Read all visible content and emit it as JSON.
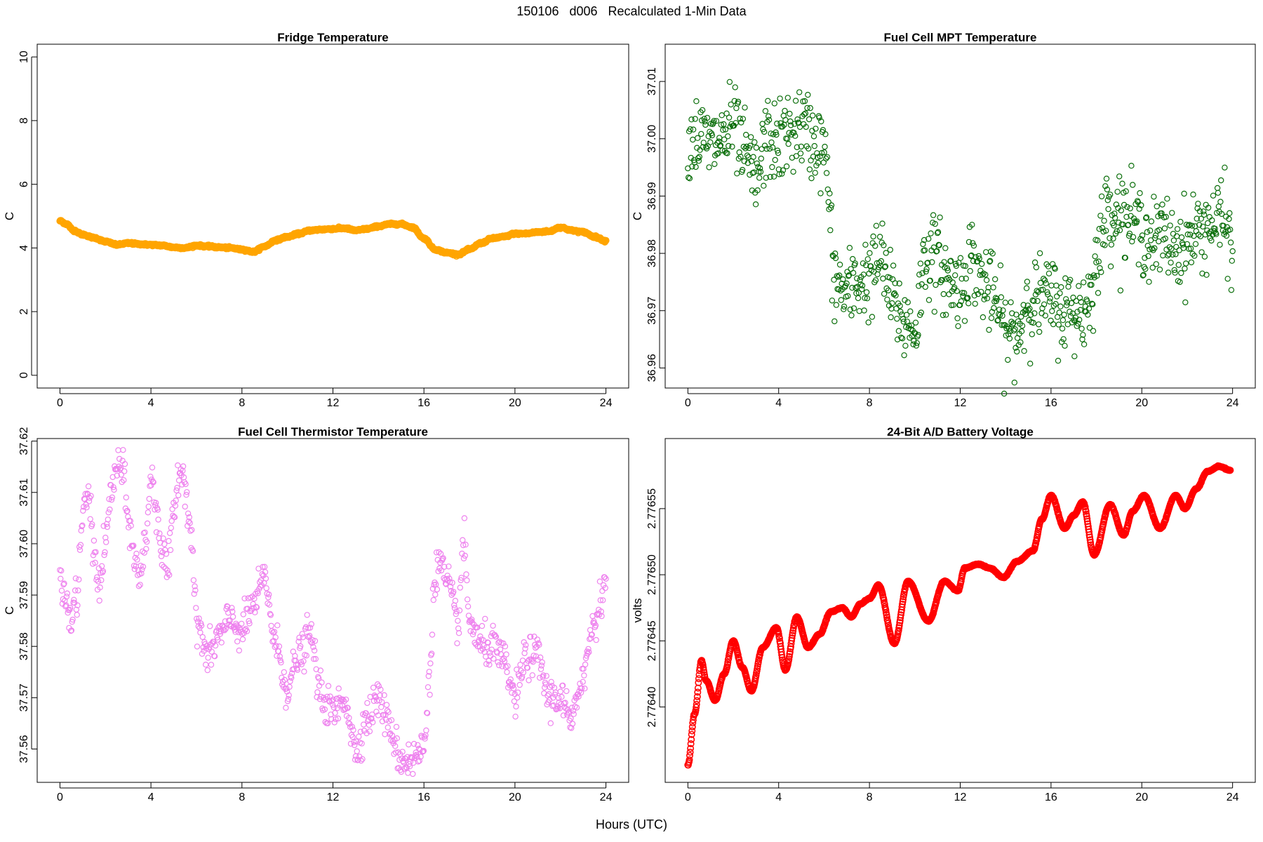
{
  "figure": {
    "title": "150106   d006   Recalculated 1-Min Data",
    "xlabel": "Hours (UTC)"
  },
  "chart_data": [
    {
      "type": "scatter",
      "id": "fridge",
      "title": "Fridge Temperature",
      "ylabel": "C",
      "color": "#FFA500",
      "xlim": [
        -1,
        25
      ],
      "ylim": [
        -0.4,
        10.4
      ],
      "xticks": [
        0,
        4,
        8,
        12,
        16,
        20,
        24
      ],
      "yticks": [
        0,
        2,
        4,
        6,
        8,
        10
      ],
      "ytick_labels": [
        "0",
        "2",
        "4",
        "6",
        "8",
        "10"
      ],
      "render": "dense",
      "noise": 0.015,
      "x": [
        0,
        0.3,
        0.6,
        1.0,
        1.5,
        2.0,
        2.5,
        3.0,
        3.5,
        4.0,
        4.5,
        5.0,
        5.5,
        6.0,
        6.5,
        7.0,
        7.5,
        8.0,
        8.5,
        9.0,
        9.5,
        10.0,
        10.5,
        11.0,
        11.5,
        12.0,
        12.5,
        13.0,
        13.5,
        14.0,
        14.5,
        15.0,
        15.5,
        16.0,
        16.5,
        17.0,
        17.5,
        18.0,
        18.5,
        19.0,
        19.5,
        20.0,
        20.5,
        21.0,
        21.5,
        22.0,
        22.5,
        23.0,
        23.5,
        24.0
      ],
      "values": [
        4.85,
        4.75,
        4.55,
        4.42,
        4.32,
        4.2,
        4.1,
        4.15,
        4.12,
        4.1,
        4.08,
        4.02,
        4.0,
        4.08,
        4.05,
        4.02,
        4.0,
        3.95,
        3.88,
        4.05,
        4.25,
        4.35,
        4.45,
        4.55,
        4.58,
        4.6,
        4.62,
        4.55,
        4.6,
        4.68,
        4.75,
        4.75,
        4.65,
        4.3,
        3.95,
        3.85,
        3.8,
        3.95,
        4.15,
        4.3,
        4.35,
        4.45,
        4.45,
        4.5,
        4.52,
        4.65,
        4.55,
        4.5,
        4.35,
        4.22
      ]
    },
    {
      "type": "scatter",
      "id": "mpt",
      "title": "Fuel Cell MPT Temperature",
      "ylabel": "C",
      "color": "#0A6E0A",
      "xlim": [
        -1,
        25
      ],
      "ylim": [
        36.9565,
        37.0165
      ],
      "xticks": [
        0,
        4,
        8,
        12,
        16,
        20,
        24
      ],
      "yticks": [
        36.96,
        36.97,
        36.98,
        36.99,
        37.0,
        37.01
      ],
      "ytick_labels": [
        "36.96",
        "36.97",
        "36.98",
        "36.99",
        "37.00",
        "37.01"
      ],
      "render": "scatter",
      "noise": 0.0065,
      "x": [
        0,
        0.5,
        1.0,
        1.5,
        2.0,
        2.5,
        3.0,
        3.5,
        4.0,
        4.5,
        5.0,
        5.5,
        6.0,
        6.5,
        7.0,
        7.5,
        8.0,
        8.5,
        9.0,
        9.5,
        10.0,
        10.5,
        11.0,
        11.5,
        12.0,
        12.5,
        13.0,
        13.5,
        14.0,
        14.5,
        15.0,
        15.5,
        16.0,
        16.5,
        17.0,
        17.5,
        18.0,
        18.5,
        19.0,
        19.5,
        20.0,
        20.5,
        21.0,
        21.5,
        22.0,
        22.5,
        23.0,
        23.5,
        24.0
      ],
      "values": [
        37.0,
        37.0,
        36.999,
        37.0,
        37.002,
        36.997,
        36.993,
        37.0,
        36.999,
        37.001,
        37.002,
        37.0,
        36.998,
        36.975,
        36.973,
        36.975,
        36.976,
        36.979,
        36.972,
        36.968,
        36.967,
        36.98,
        36.979,
        36.975,
        36.974,
        36.979,
        36.975,
        36.972,
        36.966,
        36.966,
        36.972,
        36.972,
        36.972,
        36.97,
        36.97,
        36.97,
        36.978,
        36.988,
        36.987,
        36.986,
        36.984,
        36.982,
        36.983,
        36.981,
        36.982,
        36.984,
        36.985,
        36.986,
        36.982
      ]
    },
    {
      "type": "scatter",
      "id": "thermistor",
      "title": "Fuel Cell Thermistor Temperature",
      "ylabel": "C",
      "color": "#EE82EE",
      "xlim": [
        -1,
        25
      ],
      "ylim": [
        37.5535,
        37.6205
      ],
      "xticks": [
        0,
        4,
        8,
        12,
        16,
        20,
        24
      ],
      "yticks": [
        37.56,
        37.57,
        37.58,
        37.59,
        37.6,
        37.61,
        37.62
      ],
      "ytick_labels": [
        "37.56",
        "37.57",
        "37.58",
        "37.59",
        "37.60",
        "37.61",
        "37.62"
      ],
      "render": "scatter",
      "noise": 0.0035,
      "x": [
        0,
        0.25,
        0.5,
        0.75,
        1.0,
        1.25,
        1.5,
        1.75,
        2.0,
        2.25,
        2.5,
        2.75,
        3.0,
        3.25,
        3.5,
        3.75,
        4.0,
        4.25,
        4.5,
        4.75,
        5.0,
        5.25,
        5.5,
        5.75,
        6.0,
        6.5,
        7.0,
        7.5,
        8.0,
        8.5,
        9.0,
        9.5,
        10.0,
        10.5,
        11.0,
        11.5,
        12.0,
        12.5,
        13.0,
        13.5,
        14.0,
        14.5,
        15.0,
        15.5,
        16.0,
        16.25,
        16.5,
        16.75,
        17.0,
        17.5,
        17.75,
        18.0,
        18.5,
        19.0,
        19.5,
        20.0,
        20.5,
        21.0,
        21.5,
        22.0,
        22.5,
        23.0,
        23.5,
        24.0
      ],
      "values": [
        37.592,
        37.589,
        37.585,
        37.59,
        37.605,
        37.61,
        37.598,
        37.592,
        37.6,
        37.61,
        37.615,
        37.614,
        37.605,
        37.598,
        37.593,
        37.6,
        37.613,
        37.607,
        37.598,
        37.595,
        37.605,
        37.615,
        37.612,
        37.603,
        37.585,
        37.578,
        37.582,
        37.585,
        37.583,
        37.588,
        37.593,
        37.58,
        37.572,
        37.578,
        37.582,
        37.57,
        37.567,
        37.57,
        37.56,
        37.566,
        37.57,
        37.564,
        37.558,
        37.558,
        37.56,
        37.575,
        37.595,
        37.596,
        37.592,
        37.585,
        37.6,
        37.585,
        37.58,
        37.58,
        37.577,
        37.57,
        37.578,
        37.578,
        37.57,
        37.57,
        37.565,
        37.575,
        37.585,
        37.593
      ]
    },
    {
      "type": "scatter",
      "id": "battery",
      "title": "24-Bit A/D Battery Voltage",
      "ylabel": "volts",
      "color": "#FF0000",
      "xlim": [
        -1,
        25
      ],
      "ylim": [
        2.776343,
        2.776603
      ],
      "xticks": [
        0,
        4,
        8,
        12,
        16,
        20,
        24
      ],
      "yticks": [
        2.7764,
        2.77645,
        2.7765,
        2.77655
      ],
      "ytick_labels": [
        "2.77640",
        "2.77645",
        "2.77650",
        "2.77655"
      ],
      "render": "dense",
      "noise": 2e-07,
      "x": [
        0,
        0.3,
        0.6,
        0.8,
        1.2,
        1.6,
        2.0,
        2.4,
        2.8,
        3.3,
        3.9,
        4.3,
        4.8,
        5.3,
        5.8,
        6.3,
        6.8,
        7.2,
        7.6,
        8.0,
        8.4,
        9.1,
        9.7,
        10.6,
        11.3,
        11.9,
        12.2,
        12.8,
        13.3,
        13.9,
        14.5,
        15.2,
        15.6,
        16.0,
        16.6,
        17.0,
        17.4,
        17.9,
        18.6,
        19.2,
        19.6,
        20.1,
        20.8,
        21.5,
        21.9,
        22.4,
        22.9,
        23.4,
        23.9
      ],
      "values": [
        2.776356,
        2.776395,
        2.776435,
        2.77642,
        2.776405,
        2.776425,
        2.77645,
        2.77643,
        2.776412,
        2.776445,
        2.77646,
        2.776428,
        2.776468,
        2.776445,
        2.776455,
        2.776472,
        2.776475,
        2.776468,
        2.776478,
        2.776482,
        2.776492,
        2.776448,
        2.776495,
        2.776465,
        2.776495,
        2.776488,
        2.776505,
        2.776508,
        2.776505,
        2.776498,
        2.77651,
        2.776518,
        2.776542,
        2.77656,
        2.776535,
        2.776545,
        2.776555,
        2.776515,
        2.776553,
        2.77653,
        2.776548,
        2.77656,
        2.776535,
        2.77656,
        2.77655,
        2.776565,
        2.776578,
        2.776582,
        2.776579
      ]
    }
  ]
}
